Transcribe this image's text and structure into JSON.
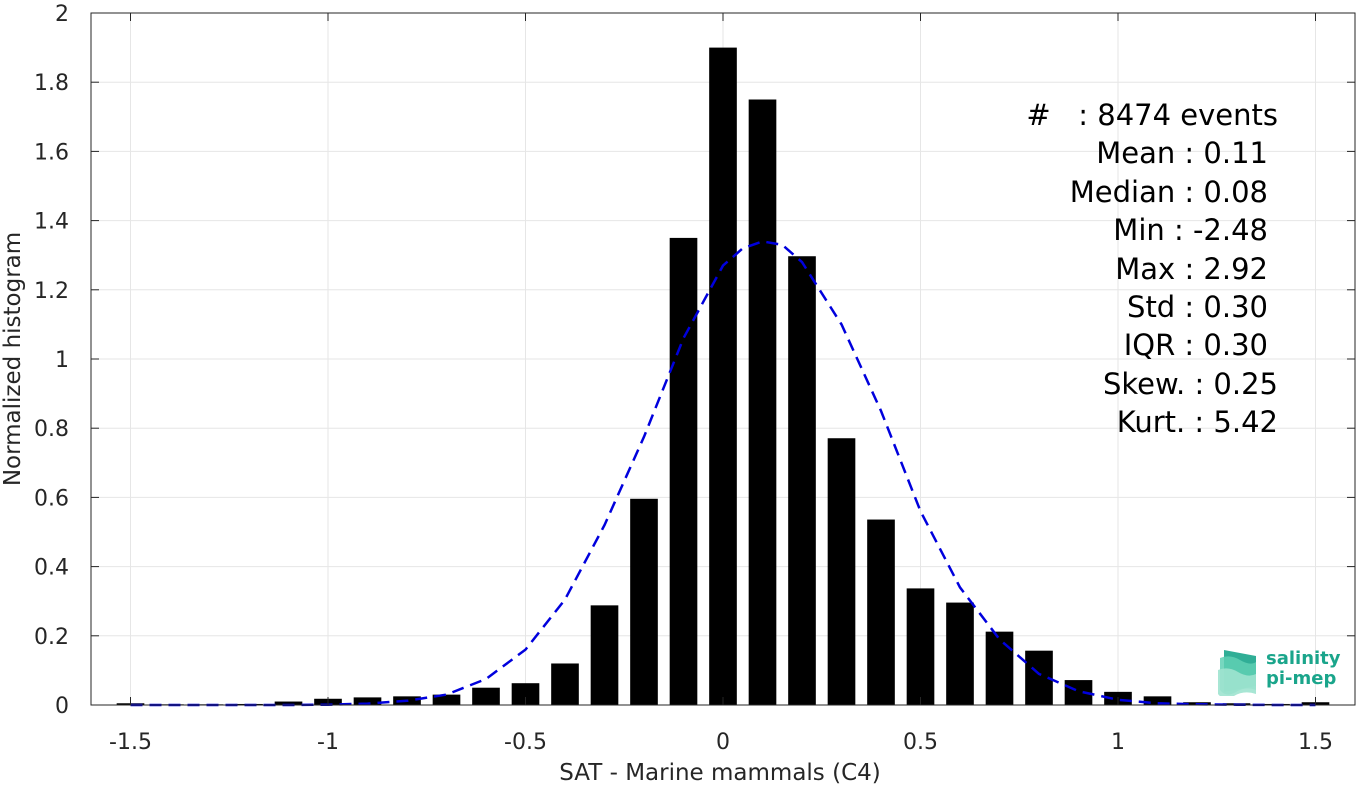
{
  "chart_data": {
    "type": "bar",
    "xlabel": "SAT - Marine mammals (C4)",
    "ylabel": "Normalized histogram",
    "xlim": [
      -1.6,
      1.6
    ],
    "ylim": [
      0,
      2
    ],
    "xticks": [
      -1.5,
      -1,
      -0.5,
      0,
      0.5,
      1,
      1.5
    ],
    "xtick_labels": [
      "-1.5",
      "-1",
      "-0.5",
      "0",
      "0.5",
      "1",
      "1.5"
    ],
    "yticks": [
      0,
      0.2,
      0.4,
      0.6,
      0.8,
      1,
      1.2,
      1.4,
      1.6,
      1.8,
      2
    ],
    "ytick_labels": [
      "0",
      "0.2",
      "0.4",
      "0.6",
      "0.8",
      "1",
      "1.2",
      "1.4",
      "1.6",
      "1.8",
      "2"
    ],
    "grid": true,
    "bar_color": "#000000",
    "bar_width": 0.07,
    "bars": {
      "x": [
        -1.5,
        -1.4,
        -1.3,
        -1.2,
        -1.1,
        -1.0,
        -0.9,
        -0.8,
        -0.7,
        -0.6,
        -0.5,
        -0.4,
        -0.3,
        -0.2,
        -0.1,
        0.0,
        0.1,
        0.2,
        0.3,
        0.4,
        0.5,
        0.6,
        0.7,
        0.8,
        0.9,
        1.0,
        1.1,
        1.2,
        1.3,
        1.4,
        1.5
      ],
      "values": [
        0.005,
        0.002,
        0.002,
        0.003,
        0.01,
        0.018,
        0.022,
        0.025,
        0.03,
        0.05,
        0.063,
        0.12,
        0.288,
        0.596,
        1.35,
        1.9,
        1.75,
        1.297,
        0.771,
        0.536,
        0.337,
        0.296,
        0.212,
        0.157,
        0.072,
        0.038,
        0.025,
        0.008,
        0.005,
        0.003,
        0.008
      ]
    },
    "fit_curve": {
      "style": "dashed",
      "color": "#0000dd",
      "x": [
        -1.5,
        -1.4,
        -1.3,
        -1.2,
        -1.1,
        -1.0,
        -0.9,
        -0.8,
        -0.7,
        -0.6,
        -0.5,
        -0.4,
        -0.3,
        -0.2,
        -0.1,
        0.0,
        0.05,
        0.1,
        0.15,
        0.2,
        0.3,
        0.4,
        0.5,
        0.6,
        0.7,
        0.8,
        0.9,
        1.0,
        1.1,
        1.2,
        1.3,
        1.4,
        1.5
      ],
      "y": [
        0.0,
        0.0,
        0.0,
        0.0,
        0.0,
        0.001,
        0.004,
        0.012,
        0.03,
        0.075,
        0.16,
        0.305,
        0.52,
        0.775,
        1.06,
        1.27,
        1.32,
        1.34,
        1.33,
        1.28,
        1.1,
        0.85,
        0.56,
        0.34,
        0.19,
        0.09,
        0.04,
        0.015,
        0.005,
        0.002,
        0.001,
        0.0,
        0.0
      ]
    },
    "stats": [
      {
        "label": "#  ",
        "value": "8474 events"
      },
      {
        "label": "Mean",
        "value": "0.11"
      },
      {
        "label": "Median",
        "value": "0.08"
      },
      {
        "label": "Min",
        "value": "-2.48"
      },
      {
        "label": "Max",
        "value": "2.92"
      },
      {
        "label": "Std",
        "value": "0.30"
      },
      {
        "label": "IQR",
        "value": "0.30"
      },
      {
        "label": "Skew.",
        "value": "0.25"
      },
      {
        "label": "Kurt.",
        "value": "5.42"
      }
    ]
  },
  "logo": {
    "line1": "salinity",
    "line2": "pi-mep",
    "color": "#1aa58b"
  }
}
